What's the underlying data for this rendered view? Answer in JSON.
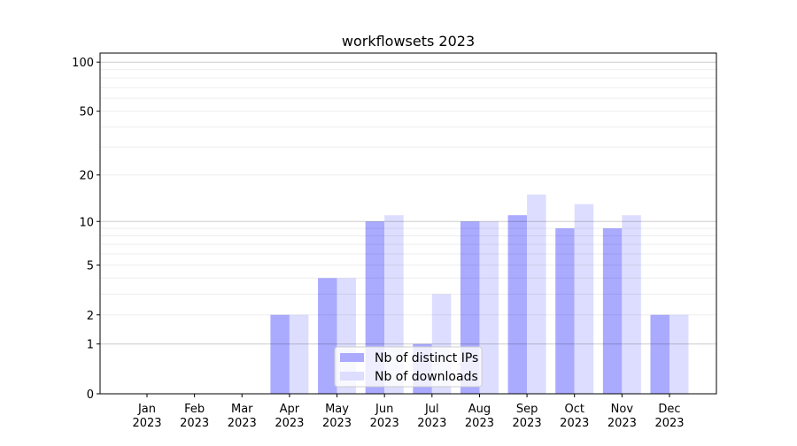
{
  "chart_data": {
    "type": "bar",
    "title": "workflowsets 2023",
    "xlabel": "",
    "ylabel": "",
    "yscale": "log(1+y)",
    "ylim": [
      0,
      110
    ],
    "yticks": [
      0,
      1,
      2,
      5,
      10,
      20,
      50,
      100
    ],
    "ytick_labels": [
      "0",
      "1",
      "2",
      "5",
      "10",
      "20",
      "50",
      "100"
    ],
    "grid": true,
    "legend_position": "lower-center",
    "categories": [
      "Jan\n2023",
      "Feb\n2023",
      "Mar\n2023",
      "Apr\n2023",
      "May\n2023",
      "Jun\n2023",
      "Jul\n2023",
      "Aug\n2023",
      "Sep\n2023",
      "Oct\n2023",
      "Nov\n2023",
      "Dec\n2023"
    ],
    "category_months": [
      "Jan",
      "Feb",
      "Mar",
      "Apr",
      "May",
      "Jun",
      "Jul",
      "Aug",
      "Sep",
      "Oct",
      "Nov",
      "Dec"
    ],
    "category_year": "2023",
    "series": [
      {
        "name": "Nb of distinct IPs",
        "color": "#aaaaff",
        "values": [
          0,
          0,
          0,
          2,
          4,
          10,
          1,
          10,
          11,
          9,
          9,
          2
        ]
      },
      {
        "name": "Nb of downloads",
        "color": "#ddddff",
        "values": [
          0,
          0,
          0,
          2,
          4,
          11,
          3,
          10,
          15,
          13,
          11,
          2
        ]
      }
    ]
  }
}
